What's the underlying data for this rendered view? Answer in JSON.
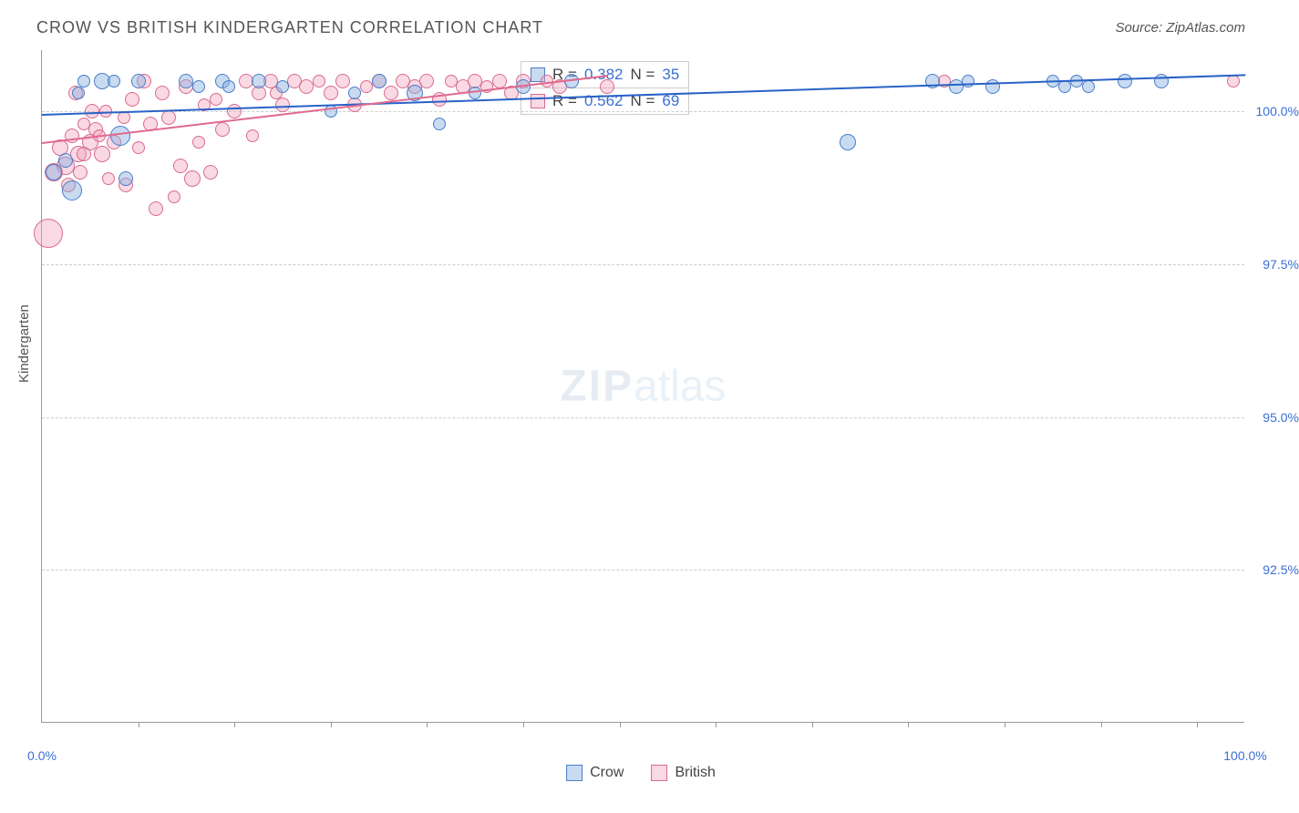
{
  "title": "CROW VS BRITISH KINDERGARTEN CORRELATION CHART",
  "source_label": "Source: ZipAtlas.com",
  "ylabel": "Kindergarten",
  "watermark": {
    "a": "ZIP",
    "b": "atlas"
  },
  "chart": {
    "type": "scatter",
    "xlim": [
      0,
      100
    ],
    "ylim": [
      90,
      101
    ],
    "ytick_positions": [
      92.5,
      95.0,
      97.5,
      100.0
    ],
    "ytick_labels": [
      "92.5%",
      "95.0%",
      "97.5%",
      "100.0%"
    ],
    "xtick_positions": [
      0,
      100
    ],
    "xtick_labels": [
      "0.0%",
      "100.0%"
    ],
    "xtick_minor": [
      8,
      16,
      24,
      32,
      40,
      48,
      56,
      64,
      72,
      80,
      88,
      96
    ],
    "background_color": "#ffffff",
    "grid_color": "#cccccc",
    "axis_color": "#999999",
    "tick_font_color": "#3b6fd4",
    "tick_fontsize": 14,
    "series": [
      {
        "name": "Crow",
        "color_fill": "rgba(135,175,225,0.45)",
        "color_stroke": "#4a7dc9",
        "line_color": "#2962c7",
        "line_width": 2,
        "trend": {
          "x0": 0,
          "y0": 99.95,
          "x1": 100,
          "y1": 100.6
        },
        "R_label": "R = ",
        "R": "0.382",
        "N_label": "N = ",
        "N": "35",
        "points": [
          {
            "x": 1,
            "y": 99.0,
            "r": 9
          },
          {
            "x": 2,
            "y": 99.2,
            "r": 8
          },
          {
            "x": 2.5,
            "y": 98.7,
            "r": 11
          },
          {
            "x": 3,
            "y": 100.3,
            "r": 7
          },
          {
            "x": 3.5,
            "y": 100.5,
            "r": 7
          },
          {
            "x": 5,
            "y": 100.5,
            "r": 9
          },
          {
            "x": 6,
            "y": 100.5,
            "r": 7
          },
          {
            "x": 6.5,
            "y": 99.6,
            "r": 11
          },
          {
            "x": 7,
            "y": 98.9,
            "r": 8
          },
          {
            "x": 8,
            "y": 100.5,
            "r": 8
          },
          {
            "x": 12,
            "y": 100.5,
            "r": 8
          },
          {
            "x": 13,
            "y": 100.4,
            "r": 7
          },
          {
            "x": 15,
            "y": 100.5,
            "r": 8
          },
          {
            "x": 15.5,
            "y": 100.4,
            "r": 7
          },
          {
            "x": 18,
            "y": 100.5,
            "r": 8
          },
          {
            "x": 20,
            "y": 100.4,
            "r": 7
          },
          {
            "x": 24,
            "y": 100.0,
            "r": 7
          },
          {
            "x": 26,
            "y": 100.3,
            "r": 7
          },
          {
            "x": 28,
            "y": 100.5,
            "r": 8
          },
          {
            "x": 31,
            "y": 100.3,
            "r": 9
          },
          {
            "x": 33,
            "y": 99.8,
            "r": 7
          },
          {
            "x": 36,
            "y": 100.3,
            "r": 7
          },
          {
            "x": 40,
            "y": 100.4,
            "r": 8
          },
          {
            "x": 44,
            "y": 100.5,
            "r": 8
          },
          {
            "x": 67,
            "y": 99.5,
            "r": 9
          },
          {
            "x": 74,
            "y": 100.5,
            "r": 8
          },
          {
            "x": 76,
            "y": 100.4,
            "r": 8
          },
          {
            "x": 77,
            "y": 100.5,
            "r": 7
          },
          {
            "x": 79,
            "y": 100.4,
            "r": 8
          },
          {
            "x": 84,
            "y": 100.5,
            "r": 7
          },
          {
            "x": 85,
            "y": 100.4,
            "r": 7
          },
          {
            "x": 86,
            "y": 100.5,
            "r": 7
          },
          {
            "x": 87,
            "y": 100.4,
            "r": 7
          },
          {
            "x": 90,
            "y": 100.5,
            "r": 8
          },
          {
            "x": 93,
            "y": 100.5,
            "r": 8
          }
        ]
      },
      {
        "name": "British",
        "color_fill": "rgba(240,160,185,0.4)",
        "color_stroke": "#d96b8f",
        "line_color": "#e06a8e",
        "line_width": 2,
        "trend": {
          "x0": 0,
          "y0": 99.5,
          "x1": 47,
          "y1": 100.6
        },
        "R_label": "R = ",
        "R": "0.562",
        "N_label": "N = ",
        "N": "69",
        "points": [
          {
            "x": 0.5,
            "y": 98.0,
            "r": 16
          },
          {
            "x": 1,
            "y": 99.0,
            "r": 10
          },
          {
            "x": 1.5,
            "y": 99.4,
            "r": 9
          },
          {
            "x": 2,
            "y": 99.1,
            "r": 10
          },
          {
            "x": 2.2,
            "y": 98.8,
            "r": 8
          },
          {
            "x": 2.5,
            "y": 99.6,
            "r": 8
          },
          {
            "x": 2.8,
            "y": 100.3,
            "r": 8
          },
          {
            "x": 3,
            "y": 99.3,
            "r": 9
          },
          {
            "x": 3.2,
            "y": 99.0,
            "r": 8
          },
          {
            "x": 3.5,
            "y": 99.8,
            "r": 7
          },
          {
            "x": 4,
            "y": 99.5,
            "r": 9
          },
          {
            "x": 4.2,
            "y": 100.0,
            "r": 8
          },
          {
            "x": 4.5,
            "y": 99.7,
            "r": 8
          },
          {
            "x": 5,
            "y": 99.3,
            "r": 9
          },
          {
            "x": 5.5,
            "y": 98.9,
            "r": 7
          },
          {
            "x": 6,
            "y": 99.5,
            "r": 8
          },
          {
            "x": 7,
            "y": 98.8,
            "r": 8
          },
          {
            "x": 7.5,
            "y": 100.2,
            "r": 8
          },
          {
            "x": 8,
            "y": 99.4,
            "r": 7
          },
          {
            "x": 8.5,
            "y": 100.5,
            "r": 8
          },
          {
            "x": 9,
            "y": 99.8,
            "r": 8
          },
          {
            "x": 9.5,
            "y": 98.4,
            "r": 8
          },
          {
            "x": 10,
            "y": 100.3,
            "r": 8
          },
          {
            "x": 10.5,
            "y": 99.9,
            "r": 8
          },
          {
            "x": 11,
            "y": 98.6,
            "r": 7
          },
          {
            "x": 11.5,
            "y": 99.1,
            "r": 8
          },
          {
            "x": 12,
            "y": 100.4,
            "r": 8
          },
          {
            "x": 12.5,
            "y": 98.9,
            "r": 9
          },
          {
            "x": 13,
            "y": 99.5,
            "r": 7
          },
          {
            "x": 14,
            "y": 99.0,
            "r": 8
          },
          {
            "x": 14.5,
            "y": 100.2,
            "r": 7
          },
          {
            "x": 15,
            "y": 99.7,
            "r": 8
          },
          {
            "x": 16,
            "y": 100.0,
            "r": 8
          },
          {
            "x": 17,
            "y": 100.5,
            "r": 8
          },
          {
            "x": 17.5,
            "y": 99.6,
            "r": 7
          },
          {
            "x": 18,
            "y": 100.3,
            "r": 8
          },
          {
            "x": 19,
            "y": 100.5,
            "r": 8
          },
          {
            "x": 20,
            "y": 100.1,
            "r": 8
          },
          {
            "x": 21,
            "y": 100.5,
            "r": 8
          },
          {
            "x": 22,
            "y": 100.4,
            "r": 8
          },
          {
            "x": 23,
            "y": 100.5,
            "r": 7
          },
          {
            "x": 24,
            "y": 100.3,
            "r": 8
          },
          {
            "x": 25,
            "y": 100.5,
            "r": 8
          },
          {
            "x": 26,
            "y": 100.1,
            "r": 8
          },
          {
            "x": 27,
            "y": 100.4,
            "r": 7
          },
          {
            "x": 28,
            "y": 100.5,
            "r": 8
          },
          {
            "x": 29,
            "y": 100.3,
            "r": 8
          },
          {
            "x": 30,
            "y": 100.5,
            "r": 8
          },
          {
            "x": 31,
            "y": 100.4,
            "r": 8
          },
          {
            "x": 32,
            "y": 100.5,
            "r": 8
          },
          {
            "x": 33,
            "y": 100.2,
            "r": 8
          },
          {
            "x": 35,
            "y": 100.4,
            "r": 8
          },
          {
            "x": 36,
            "y": 100.5,
            "r": 8
          },
          {
            "x": 37,
            "y": 100.4,
            "r": 7
          },
          {
            "x": 38,
            "y": 100.5,
            "r": 8
          },
          {
            "x": 39,
            "y": 100.3,
            "r": 8
          },
          {
            "x": 40,
            "y": 100.5,
            "r": 8
          },
          {
            "x": 42,
            "y": 100.5,
            "r": 7
          },
          {
            "x": 43,
            "y": 100.4,
            "r": 8
          },
          {
            "x": 47,
            "y": 100.4,
            "r": 8
          },
          {
            "x": 75,
            "y": 100.5,
            "r": 7
          },
          {
            "x": 99,
            "y": 100.5,
            "r": 7
          },
          {
            "x": 3.5,
            "y": 99.3,
            "r": 8
          },
          {
            "x": 4.8,
            "y": 99.6,
            "r": 7
          },
          {
            "x": 5.3,
            "y": 100.0,
            "r": 7
          },
          {
            "x": 6.8,
            "y": 99.9,
            "r": 7
          },
          {
            "x": 13.5,
            "y": 100.1,
            "r": 7
          },
          {
            "x": 19.5,
            "y": 100.3,
            "r": 7
          },
          {
            "x": 34,
            "y": 100.5,
            "r": 7
          }
        ]
      }
    ],
    "legend": {
      "crow_label": "Crow",
      "british_label": "British"
    }
  }
}
